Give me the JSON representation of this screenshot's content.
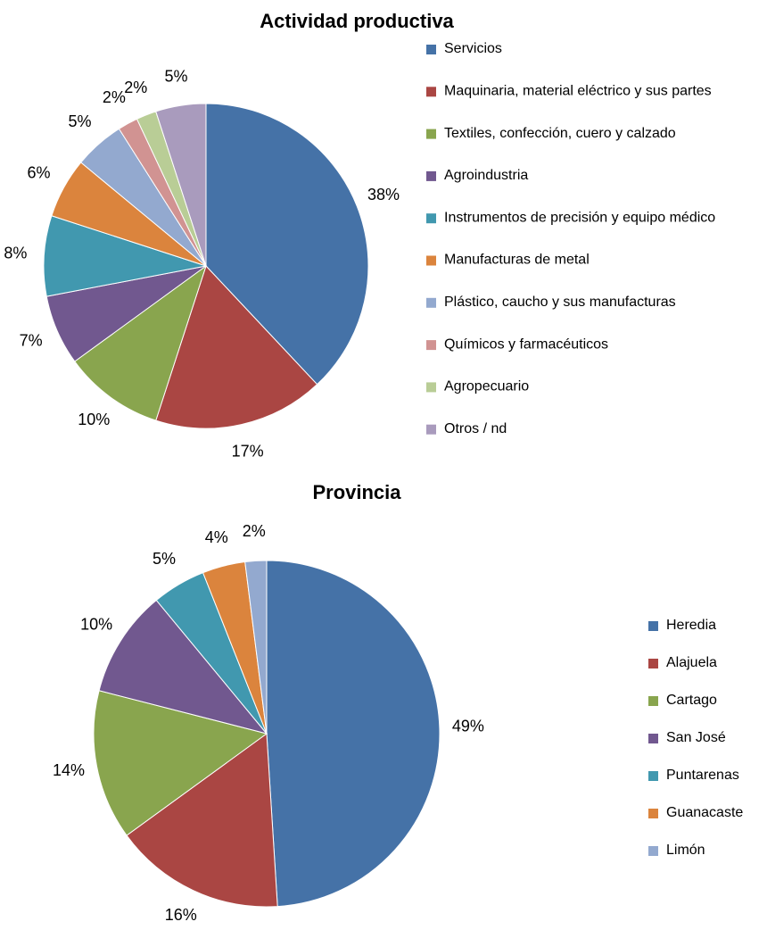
{
  "chart_data": [
    {
      "type": "pie",
      "title": "Actividad productiva",
      "categories": [
        "Servicios",
        "Maquinaria, material eléctrico y sus partes",
        "Textiles, confección, cuero y calzado",
        "Agroindustria",
        "Instrumentos de precisión y equipo médico",
        "Manufacturas de metal",
        "Plástico, caucho y sus manufacturas",
        "Químicos y farmacéuticos",
        "Agropecuario",
        "Otros / nd"
      ],
      "values": [
        38,
        17,
        10,
        7,
        8,
        6,
        5,
        2,
        2,
        5
      ],
      "value_labels": [
        "38%",
        "17%",
        "10%",
        "7%",
        "8%",
        "6%",
        "5%",
        "2%",
        "2%",
        "5%"
      ],
      "colors": [
        "#4572A7",
        "#AA4643",
        "#89A54E",
        "#71588F",
        "#4198AF",
        "#DB843D",
        "#93A9CF",
        "#D19392",
        "#B9CD96",
        "#A99BBD"
      ],
      "legend": "right"
    },
    {
      "type": "pie",
      "title": "Provincia",
      "categories": [
        "Heredia",
        "Alajuela",
        "Cartago",
        "San José",
        "Puntarenas",
        "Guanacaste",
        "Limón"
      ],
      "values": [
        49,
        16,
        14,
        10,
        5,
        4,
        2
      ],
      "value_labels": [
        "49%",
        "16%",
        "14%",
        "10%",
        "5%",
        "4%",
        "2%"
      ],
      "colors": [
        "#4572A7",
        "#AA4643",
        "#89A54E",
        "#71588F",
        "#4198AF",
        "#DB843D",
        "#93A9CF"
      ],
      "legend": "right"
    }
  ]
}
